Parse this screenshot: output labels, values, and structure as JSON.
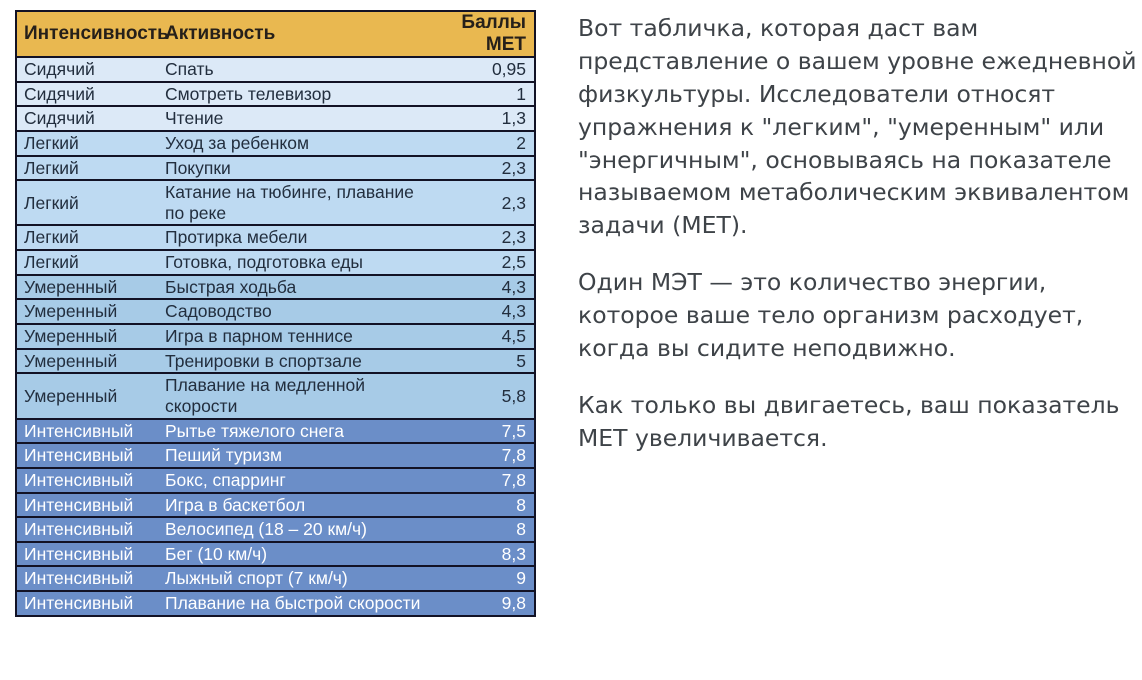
{
  "colors": {
    "header_bg": "#E9B850",
    "header_text": "#26201A",
    "sedentary_bg": "#DCE9F7",
    "light_bg": "#BEDAF2",
    "moderate_bg": "#A7CBE7",
    "vigorous_bg": "#6B8EC8",
    "vigorous_text": "#FFFFFF",
    "table_text": "#222E3E",
    "border": "#121225",
    "body_text": "#3E4348"
  },
  "table": {
    "headers": {
      "intensity": "Интенсивность",
      "activity": "Активность",
      "met": "Баллы МЕТ"
    },
    "rows": [
      {
        "level": "Сидячий",
        "key": "sedentary",
        "activity": "Спать",
        "met": "0,95"
      },
      {
        "level": "Сидячий",
        "key": "sedentary",
        "activity": "Смотреть телевизор",
        "met": "1"
      },
      {
        "level": "Сидячий",
        "key": "sedentary",
        "activity": "Чтение",
        "met": "1,3"
      },
      {
        "level": "Легкий",
        "key": "light",
        "activity": "Уход за ребенком",
        "met": "2"
      },
      {
        "level": "Легкий",
        "key": "light",
        "activity": "Покупки",
        "met": "2,3"
      },
      {
        "level": "Легкий",
        "key": "light",
        "activity": "Катание на тюбинге, плавание по реке",
        "met": "2,3"
      },
      {
        "level": "Легкий",
        "key": "light",
        "activity": "Протирка мебели",
        "met": "2,3"
      },
      {
        "level": "Легкий",
        "key": "light",
        "activity": "Готовка, подготовка еды",
        "met": "2,5"
      },
      {
        "level": "Умеренный",
        "key": "moderate",
        "activity": "Быстрая ходьба",
        "met": "4,3"
      },
      {
        "level": "Умеренный",
        "key": "moderate",
        "activity": "Садоводство",
        "met": "4,3"
      },
      {
        "level": "Умеренный",
        "key": "moderate",
        "activity": "Игра в парном теннисе",
        "met": "4,5"
      },
      {
        "level": "Умеренный",
        "key": "moderate",
        "activity": "Тренировки в спортзале",
        "met": "5"
      },
      {
        "level": "Умеренный",
        "key": "moderate",
        "activity": "Плавание на медленной скорости",
        "met": "5,8"
      },
      {
        "level": "Интенсивный",
        "key": "vigorous",
        "activity": "Рытье тяжелого снега",
        "met": "7,5"
      },
      {
        "level": "Интенсивный",
        "key": "vigorous",
        "activity": "Пеший туризм",
        "met": "7,8"
      },
      {
        "level": "Интенсивный",
        "key": "vigorous",
        "activity": "Бокс, спарринг",
        "met": "7,8"
      },
      {
        "level": "Интенсивный",
        "key": "vigorous",
        "activity": "Игра в баскетбол",
        "met": "8"
      },
      {
        "level": "Интенсивный",
        "key": "vigorous",
        "activity": "Велосипед (18 – 20 км/ч)",
        "met": "8"
      },
      {
        "level": "Интенсивный",
        "key": "vigorous",
        "activity": "Бег (10 км/ч)",
        "met": "8,3"
      },
      {
        "level": "Интенсивный",
        "key": "vigorous",
        "activity": "Лыжный спорт (7 км/ч)",
        "met": "9"
      },
      {
        "level": "Интенсивный",
        "key": "vigorous",
        "activity": "Плавание на быстрой скорости",
        "met": "9,8"
      }
    ]
  },
  "text_panel": {
    "paragraphs": [
      "Вот табличка, которая даст вам представление о вашем уровне ежедневной физкультуры. Исследователи относят упражнения к \"легким\", \"умеренным\" или \"энергичным\", основываясь на показателе называемом метаболическим эквивалентом задачи (МЕТ).",
      "Один МЭТ — это количество энергии, которое ваше тело организм расходует, когда вы сидите неподвижно.",
      "Как только вы двигаетесь, ваш показатель МЕТ увеличивается."
    ]
  }
}
